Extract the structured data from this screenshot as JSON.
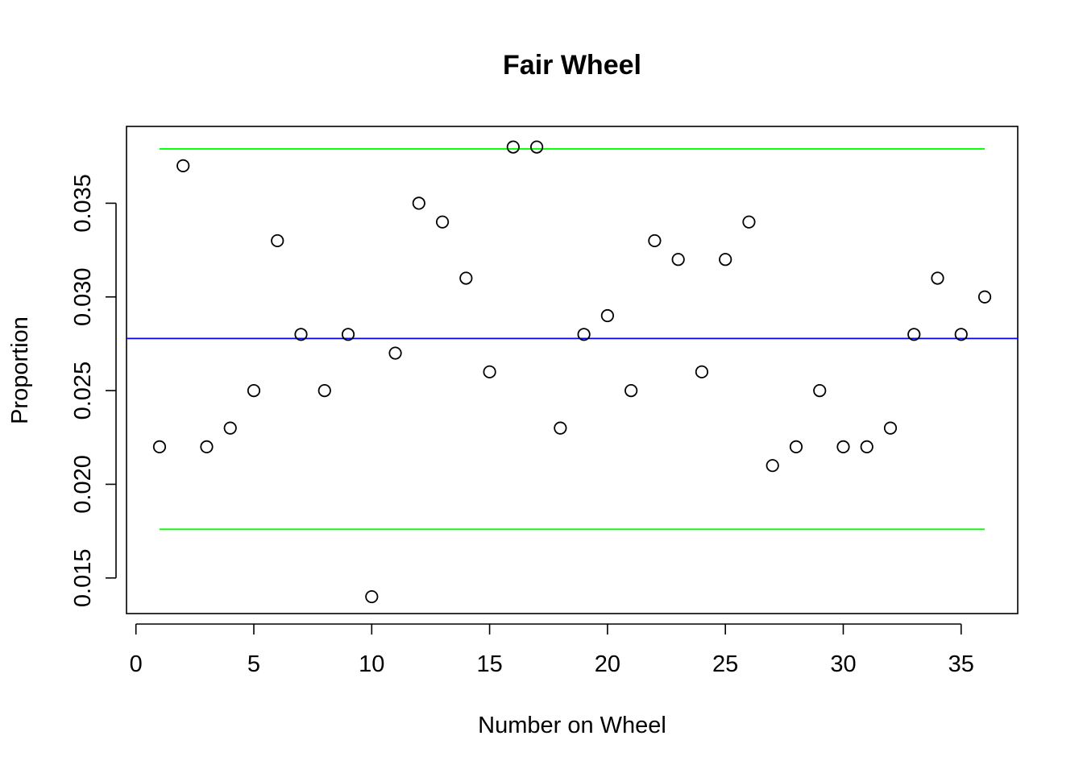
{
  "chart_data": {
    "type": "scatter",
    "title": "Fair Wheel",
    "xlabel": "Number on Wheel",
    "ylabel": "Proportion",
    "xlim": [
      -0.4,
      37.4
    ],
    "ylim": [
      0.0131,
      0.0391
    ],
    "xticks": [
      0,
      5,
      10,
      15,
      20,
      25,
      30,
      35
    ],
    "xtick_labels": [
      "0",
      "5",
      "10",
      "15",
      "20",
      "25",
      "30",
      "35"
    ],
    "yticks": [
      0.015,
      0.02,
      0.025,
      0.03,
      0.035
    ],
    "ytick_labels": [
      "0.015",
      "0.020",
      "0.025",
      "0.030",
      "0.035"
    ],
    "grid": false,
    "points": {
      "x": [
        1,
        2,
        3,
        4,
        5,
        6,
        7,
        8,
        9,
        10,
        11,
        12,
        13,
        14,
        15,
        16,
        17,
        18,
        19,
        20,
        21,
        22,
        23,
        24,
        25,
        26,
        27,
        28,
        29,
        30,
        31,
        32,
        33,
        34,
        35,
        36
      ],
      "y": [
        0.022,
        0.037,
        0.022,
        0.023,
        0.025,
        0.033,
        0.028,
        0.025,
        0.028,
        0.014,
        0.027,
        0.035,
        0.034,
        0.031,
        0.026,
        0.038,
        0.038,
        0.023,
        0.028,
        0.029,
        0.025,
        0.033,
        0.032,
        0.026,
        0.032,
        0.034,
        0.021,
        0.022,
        0.025,
        0.022,
        0.022,
        0.023,
        0.028,
        0.031,
        0.028,
        0.03
      ],
      "color": "#000000"
    },
    "reference_lines": [
      {
        "kind": "horizontal",
        "y": 0.02778,
        "x_span": "full",
        "color": "#0000ff"
      },
      {
        "kind": "segment",
        "y": 0.0379,
        "x_start": 1,
        "x_end": 36,
        "color": "#00ff00"
      },
      {
        "kind": "segment",
        "y": 0.0176,
        "x_start": 1,
        "x_end": 36,
        "color": "#00ff00"
      }
    ]
  }
}
